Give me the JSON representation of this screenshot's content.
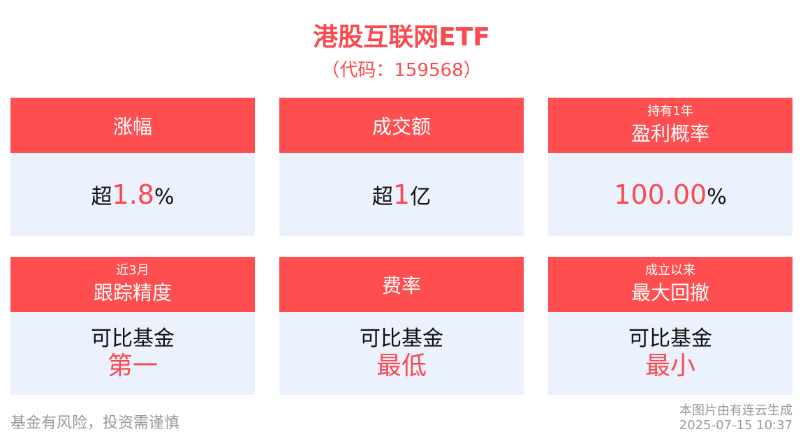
{
  "header": {
    "title": "港股互联网ETF",
    "code": "（代码：159568）"
  },
  "cards": [
    {
      "label": "涨幅",
      "prefix": "超",
      "value": "1.8",
      "suffix": "%"
    },
    {
      "label": "成交额",
      "prefix": "超",
      "value": "1",
      "suffix": "亿"
    },
    {
      "sublabel": "持有1年",
      "label": "盈利概率",
      "prefix": "",
      "value": "100.00",
      "suffix": "%"
    },
    {
      "sublabel": "近3月",
      "label": "跟踪精度",
      "line1": "可比基金",
      "line2": "第一"
    },
    {
      "label": "费率",
      "line1": "可比基金",
      "line2": "最低"
    },
    {
      "sublabel": "成立以来",
      "label": "最大回撤",
      "line1": "可比基金",
      "line2": "最小"
    }
  ],
  "footer": {
    "risk": "基金有风险，投资需谨慎",
    "generated_by": "本图片由有连云生成",
    "timestamp": "2025-07-15 10:37"
  },
  "colors": {
    "accent": "#ff4e4f",
    "card_bg": "#ebf2fe"
  }
}
